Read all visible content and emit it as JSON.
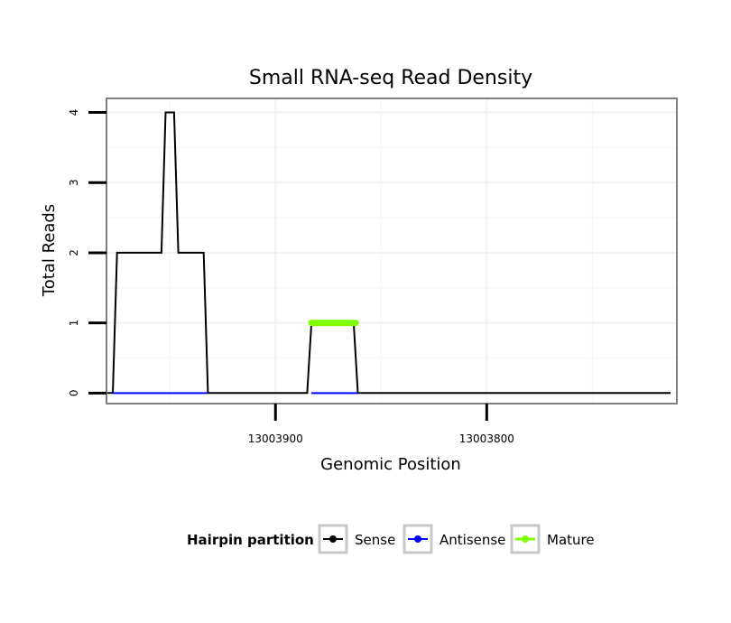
{
  "chart_data": {
    "type": "line",
    "title": "Small RNA-seq Read Density",
    "xlabel": "Genomic Position",
    "ylabel": "Total Reads",
    "x_reversed": true,
    "xlim": [
      13003980,
      13003710
    ],
    "ylim": [
      -0.15,
      4.2
    ],
    "x_ticks": [
      13003900,
      13003800
    ],
    "x_tick_labels": [
      "13003900",
      "13003800"
    ],
    "y_ticks": [
      0,
      1,
      2,
      3,
      4
    ],
    "y_tick_labels": [
      "0",
      "1",
      "2",
      "3",
      "4"
    ],
    "grid": true,
    "legend": {
      "title": "Hairpin partition",
      "position": "bottom",
      "entries": [
        "Sense",
        "Antisense",
        "Mature"
      ]
    },
    "series": [
      {
        "name": "Sense",
        "color": "#000000",
        "x": [
          13003980,
          13003977,
          13003975,
          13003954,
          13003952,
          13003948,
          13003946,
          13003934,
          13003932,
          13003930,
          13003885,
          13003883,
          13003863,
          13003861,
          13003713
        ],
        "y": [
          0,
          0,
          2,
          2,
          4,
          4,
          2,
          2,
          0,
          0,
          0,
          1,
          1,
          0,
          0
        ]
      },
      {
        "name": "Antisense",
        "color": "#0000ff",
        "x": [
          13003977,
          13003932,
          13003883,
          13003861
        ],
        "y": [
          0,
          0,
          0,
          0
        ],
        "segments": [
          [
            0,
            1
          ],
          [
            2,
            3
          ]
        ]
      },
      {
        "name": "Mature",
        "color": "#7fff00",
        "x": [
          13003883,
          13003862
        ],
        "y": [
          1,
          1
        ]
      }
    ]
  }
}
